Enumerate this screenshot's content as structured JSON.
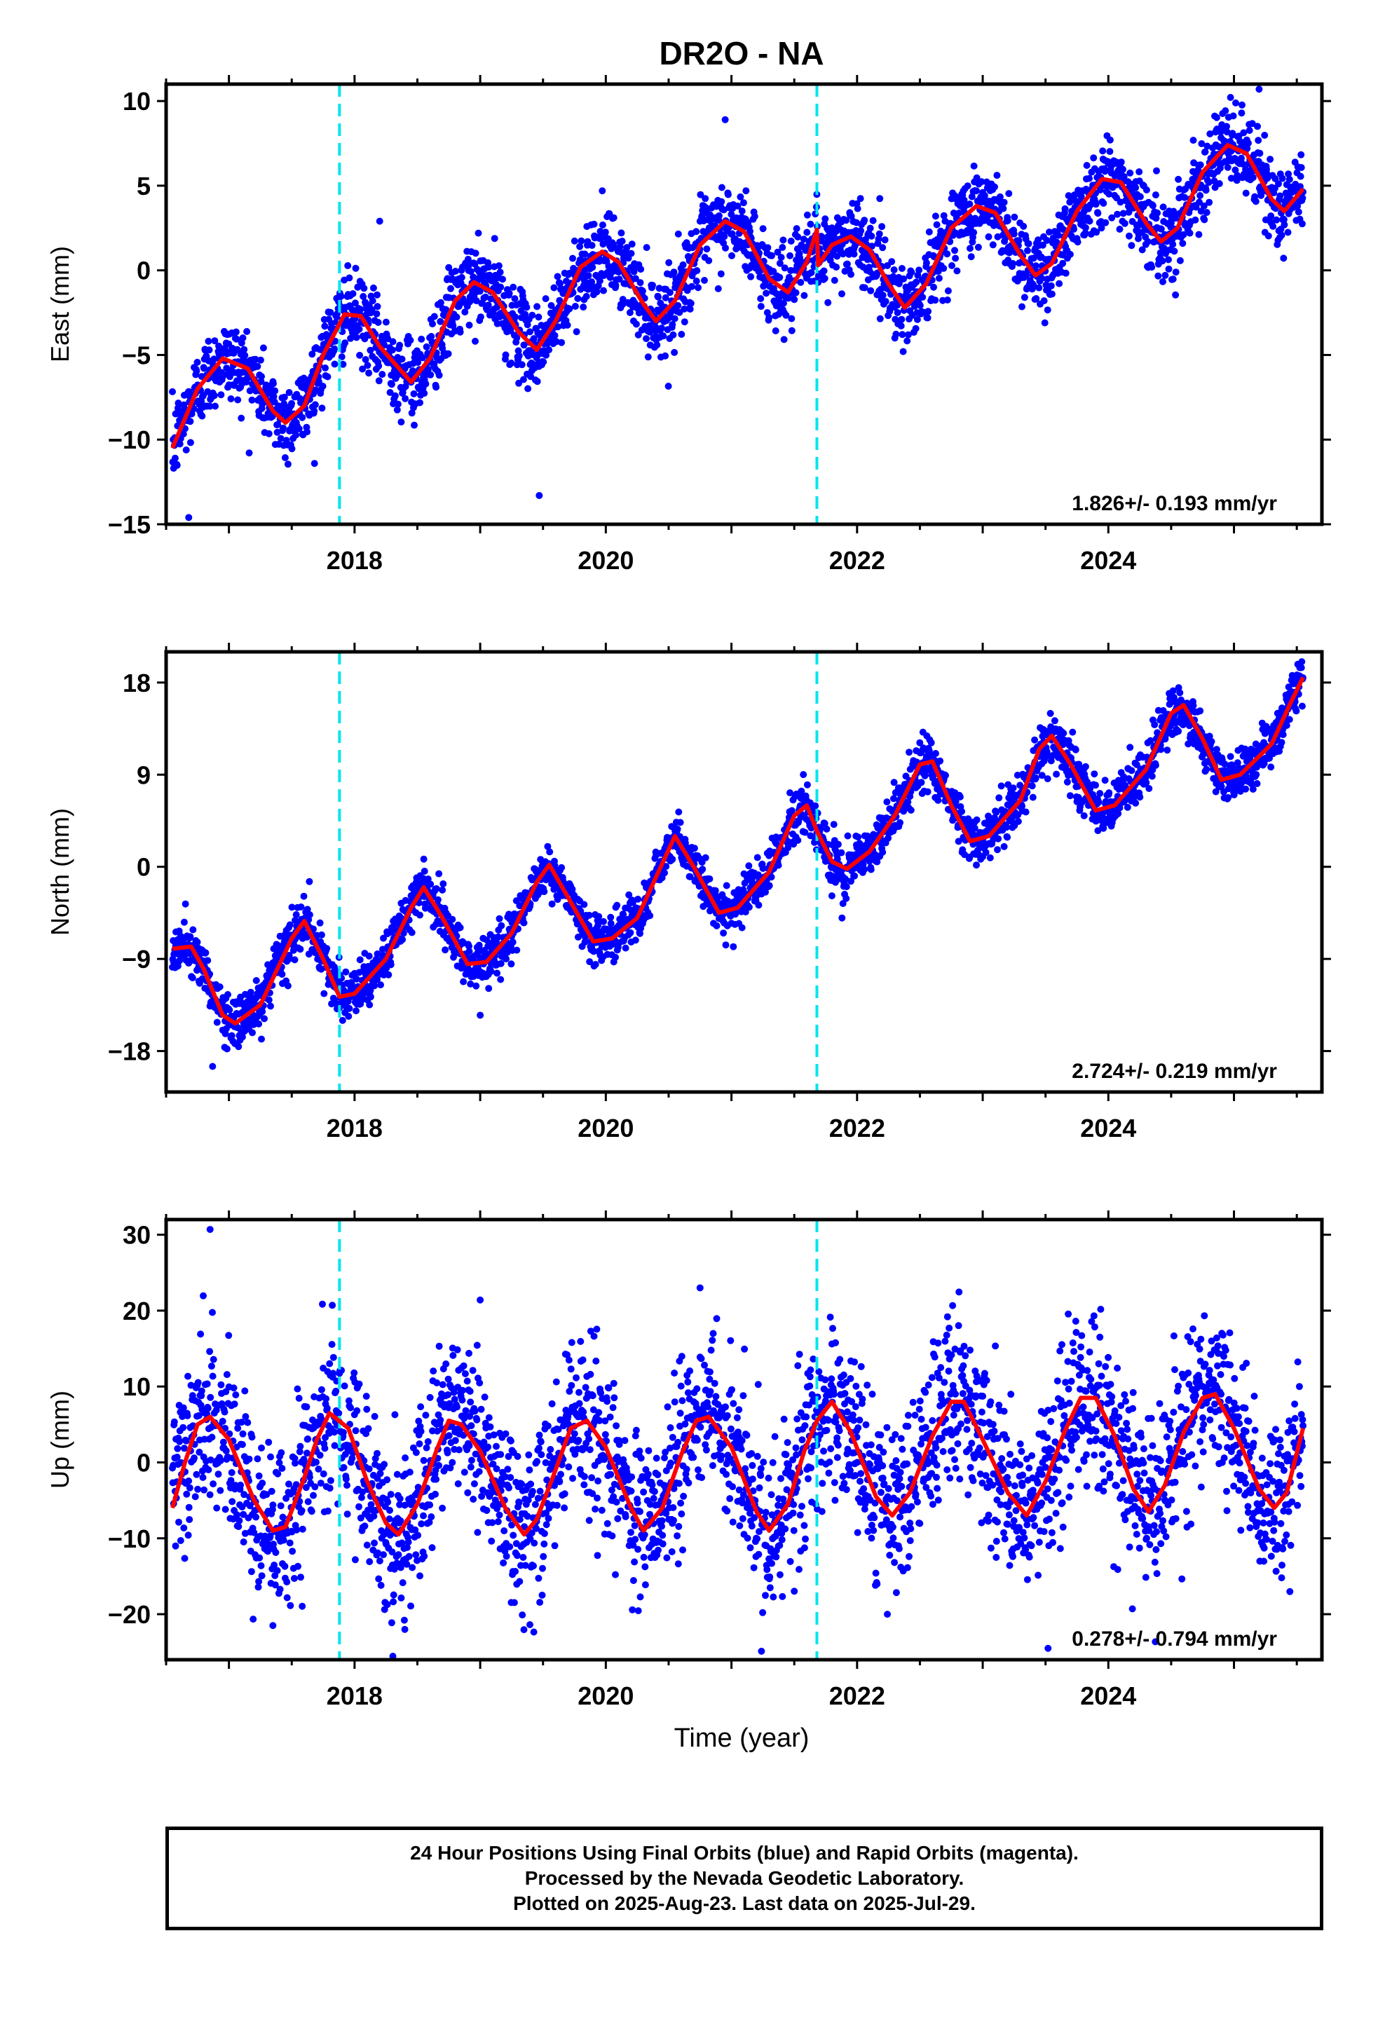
{
  "figure": {
    "title": "DR2O - NA",
    "xlabel": "Time (year)"
  },
  "caption": {
    "line1": "24 Hour Positions Using Final Orbits (blue) and Rapid Orbits (magenta).",
    "line2": "Processed by the Nevada Geodetic Laboratory.",
    "line3": "Plotted on 2025-Aug-23. Last data on 2025-Jul-29."
  },
  "colors": {
    "final_orbits": "#0000ff",
    "fit": "#ff0000",
    "events": "#00e5ee",
    "frame": "#000000"
  },
  "chart_data": [
    {
      "type": "scatter",
      "ylabel": "East (mm)",
      "xlim": [
        2016.5,
        2025.7
      ],
      "ylim": [
        -15,
        11
      ],
      "yticks": [
        10,
        5,
        0,
        -5,
        -10,
        -15
      ],
      "ytick_labels": [
        "10",
        "5",
        "0",
        "−5",
        "−10",
        "−15"
      ],
      "xticks": [
        2018,
        2020,
        2022,
        2024
      ],
      "xtick_labels": [
        "2018",
        "2020",
        "2022",
        "2024"
      ],
      "events": [
        2017.88,
        2021.68
      ],
      "rate_label": "1.826+/- 0.193 mm/yr",
      "fit_points": [
        [
          2016.55,
          -10.5
        ],
        [
          2016.75,
          -7.0
        ],
        [
          2016.95,
          -5.2
        ],
        [
          2017.15,
          -5.8
        ],
        [
          2017.35,
          -8.3
        ],
        [
          2017.45,
          -9.0
        ],
        [
          2017.6,
          -8.0
        ],
        [
          2017.75,
          -5.0
        ],
        [
          2017.92,
          -2.6
        ],
        [
          2018.05,
          -2.7
        ],
        [
          2018.2,
          -4.5
        ],
        [
          2018.45,
          -6.6
        ],
        [
          2018.6,
          -5.2
        ],
        [
          2018.8,
          -1.8
        ],
        [
          2018.95,
          -0.7
        ],
        [
          2019.1,
          -1.3
        ],
        [
          2019.3,
          -3.6
        ],
        [
          2019.45,
          -4.7
        ],
        [
          2019.6,
          -3.0
        ],
        [
          2019.8,
          0.2
        ],
        [
          2019.97,
          1.1
        ],
        [
          2020.1,
          0.5
        ],
        [
          2020.3,
          -2.0
        ],
        [
          2020.4,
          -3.0
        ],
        [
          2020.55,
          -1.8
        ],
        [
          2020.75,
          1.5
        ],
        [
          2020.95,
          2.9
        ],
        [
          2021.1,
          2.3
        ],
        [
          2021.3,
          -0.5
        ],
        [
          2021.45,
          -1.3
        ],
        [
          2021.6,
          0.5
        ],
        [
          2021.68,
          2.4
        ],
        [
          2021.69,
          0.3
        ],
        [
          2021.8,
          1.5
        ],
        [
          2021.95,
          2.0
        ],
        [
          2022.1,
          1.2
        ],
        [
          2022.25,
          -0.8
        ],
        [
          2022.38,
          -2.2
        ],
        [
          2022.55,
          -0.8
        ],
        [
          2022.75,
          2.5
        ],
        [
          2022.95,
          3.8
        ],
        [
          2023.1,
          3.4
        ],
        [
          2023.3,
          0.9
        ],
        [
          2023.42,
          -0.3
        ],
        [
          2023.55,
          0.4
        ],
        [
          2023.75,
          3.5
        ],
        [
          2023.95,
          5.4
        ],
        [
          2024.1,
          5.2
        ],
        [
          2024.3,
          2.8
        ],
        [
          2024.42,
          1.7
        ],
        [
          2024.55,
          2.5
        ],
        [
          2024.75,
          5.8
        ],
        [
          2024.95,
          7.4
        ],
        [
          2025.1,
          6.9
        ],
        [
          2025.3,
          4.2
        ],
        [
          2025.4,
          3.5
        ],
        [
          2025.55,
          4.8
        ]
      ],
      "scatter_spread": 1.2,
      "outliers": [
        [
          2016.68,
          -14.6
        ],
        [
          2019.47,
          -13.3
        ],
        [
          2020.95,
          8.9
        ],
        [
          2018.2,
          2.9
        ],
        [
          2025.2,
          10.7
        ]
      ]
    },
    {
      "type": "scatter",
      "ylabel": "North (mm)",
      "xlim": [
        2016.5,
        2025.7
      ],
      "ylim": [
        -22,
        21
      ],
      "yticks": [
        18,
        9,
        0,
        -9,
        -18
      ],
      "ytick_labels": [
        "18",
        "9",
        "0",
        "−9",
        "−18"
      ],
      "xticks": [
        2018,
        2020,
        2022,
        2024
      ],
      "xtick_labels": [
        "2018",
        "2020",
        "2022",
        "2024"
      ],
      "events": [
        2017.88,
        2021.68
      ],
      "rate_label": "2.724+/- 0.219 mm/yr",
      "fit_points": [
        [
          2016.55,
          -8.0
        ],
        [
          2016.7,
          -7.8
        ],
        [
          2016.8,
          -10.0
        ],
        [
          2016.95,
          -14.5
        ],
        [
          2017.05,
          -15.3
        ],
        [
          2017.25,
          -13.5
        ],
        [
          2017.5,
          -7.0
        ],
        [
          2017.6,
          -5.3
        ],
        [
          2017.75,
          -9.0
        ],
        [
          2017.88,
          -12.7
        ],
        [
          2018.0,
          -12.4
        ],
        [
          2018.25,
          -9.0
        ],
        [
          2018.45,
          -4.0
        ],
        [
          2018.55,
          -2.0
        ],
        [
          2018.7,
          -5.0
        ],
        [
          2018.9,
          -9.5
        ],
        [
          2019.05,
          -9.3
        ],
        [
          2019.25,
          -6.5
        ],
        [
          2019.45,
          -1.5
        ],
        [
          2019.55,
          0.2
        ],
        [
          2019.7,
          -3.0
        ],
        [
          2019.9,
          -7.3
        ],
        [
          2020.05,
          -7.0
        ],
        [
          2020.25,
          -5.0
        ],
        [
          2020.4,
          -1.0
        ],
        [
          2020.55,
          3.0
        ],
        [
          2020.7,
          0.0
        ],
        [
          2020.9,
          -4.5
        ],
        [
          2021.05,
          -4.0
        ],
        [
          2021.3,
          -0.5
        ],
        [
          2021.5,
          5.0
        ],
        [
          2021.6,
          6.0
        ],
        [
          2021.68,
          3.5
        ],
        [
          2021.8,
          0.5
        ],
        [
          2021.92,
          -0.2
        ],
        [
          2022.1,
          1.5
        ],
        [
          2022.3,
          5.0
        ],
        [
          2022.5,
          10.0
        ],
        [
          2022.6,
          10.3
        ],
        [
          2022.75,
          6.0
        ],
        [
          2022.9,
          2.5
        ],
        [
          2023.05,
          3.0
        ],
        [
          2023.3,
          6.5
        ],
        [
          2023.45,
          11.5
        ],
        [
          2023.55,
          12.8
        ],
        [
          2023.7,
          10.0
        ],
        [
          2023.9,
          5.5
        ],
        [
          2024.05,
          6.0
        ],
        [
          2024.3,
          9.5
        ],
        [
          2024.5,
          15.0
        ],
        [
          2024.6,
          15.8
        ],
        [
          2024.75,
          12.5
        ],
        [
          2024.9,
          8.5
        ],
        [
          2025.05,
          9.0
        ],
        [
          2025.3,
          12.0
        ],
        [
          2025.45,
          16.0
        ],
        [
          2025.55,
          18.5
        ]
      ],
      "scatter_spread": 1.2,
      "outliers": [
        [
          2016.87,
          -19.5
        ],
        [
          2019.0,
          -14.5
        ],
        [
          2021.88,
          -5.0
        ]
      ]
    },
    {
      "type": "scatter",
      "ylabel": "Up (mm)",
      "xlim": [
        2016.5,
        2025.7
      ],
      "ylim": [
        -26,
        32
      ],
      "yticks": [
        30,
        20,
        10,
        0,
        -10,
        -20
      ],
      "ytick_labels": [
        "30",
        "20",
        "10",
        "0",
        "−10",
        "−20"
      ],
      "xticks": [
        2018,
        2020,
        2022,
        2024
      ],
      "xtick_labels": [
        "2018",
        "2020",
        "2022",
        "2024"
      ],
      "events": [
        2017.88,
        2021.68
      ],
      "rate_label": "0.278+/- 0.794 mm/yr",
      "fit_points": [
        [
          2016.55,
          -6.0
        ],
        [
          2016.65,
          0.0
        ],
        [
          2016.75,
          5.0
        ],
        [
          2016.85,
          6.0
        ],
        [
          2017.0,
          3.0
        ],
        [
          2017.2,
          -5.0
        ],
        [
          2017.35,
          -9.0
        ],
        [
          2017.45,
          -8.5
        ],
        [
          2017.6,
          -2.0
        ],
        [
          2017.7,
          3.0
        ],
        [
          2017.8,
          6.5
        ],
        [
          2017.95,
          4.5
        ],
        [
          2018.1,
          -2.5
        ],
        [
          2018.25,
          -8.0
        ],
        [
          2018.35,
          -9.5
        ],
        [
          2018.5,
          -5.5
        ],
        [
          2018.65,
          1.5
        ],
        [
          2018.75,
          5.5
        ],
        [
          2018.85,
          5.0
        ],
        [
          2019.0,
          1.5
        ],
        [
          2019.2,
          -6.0
        ],
        [
          2019.35,
          -9.5
        ],
        [
          2019.45,
          -7.5
        ],
        [
          2019.6,
          -1.0
        ],
        [
          2019.72,
          4.5
        ],
        [
          2019.85,
          5.5
        ],
        [
          2020.0,
          2.0
        ],
        [
          2020.2,
          -6.0
        ],
        [
          2020.3,
          -9.0
        ],
        [
          2020.45,
          -6.0
        ],
        [
          2020.6,
          1.0
        ],
        [
          2020.72,
          5.5
        ],
        [
          2020.82,
          6.0
        ],
        [
          2021.0,
          2.0
        ],
        [
          2021.2,
          -6.5
        ],
        [
          2021.3,
          -9.0
        ],
        [
          2021.45,
          -5.5
        ],
        [
          2021.58,
          1.5
        ],
        [
          2021.68,
          5.5
        ],
        [
          2021.8,
          8.0
        ],
        [
          2021.95,
          4.0
        ],
        [
          2022.15,
          -4.5
        ],
        [
          2022.28,
          -7.0
        ],
        [
          2022.42,
          -4.0
        ],
        [
          2022.6,
          3.5
        ],
        [
          2022.75,
          8.0
        ],
        [
          2022.85,
          8.0
        ],
        [
          2023.0,
          3.0
        ],
        [
          2023.2,
          -4.0
        ],
        [
          2023.35,
          -7.0
        ],
        [
          2023.5,
          -2.5
        ],
        [
          2023.65,
          4.0
        ],
        [
          2023.78,
          8.5
        ],
        [
          2023.9,
          8.5
        ],
        [
          2024.05,
          3.5
        ],
        [
          2024.2,
          -3.5
        ],
        [
          2024.32,
          -6.5
        ],
        [
          2024.45,
          -3.0
        ],
        [
          2024.6,
          4.0
        ],
        [
          2024.75,
          8.5
        ],
        [
          2024.85,
          9.0
        ],
        [
          2025.0,
          4.5
        ],
        [
          2025.2,
          -3.5
        ],
        [
          2025.32,
          -6.0
        ],
        [
          2025.42,
          -4.0
        ],
        [
          2025.55,
          4.5
        ]
      ],
      "scatter_spread": 5.5,
      "outliers": [
        [
          2016.85,
          30.7
        ],
        [
          2019.0,
          21.4
        ],
        [
          2020.75,
          23.0
        ],
        [
          2023.52,
          -24.5
        ],
        [
          2018.4,
          -22.0
        ],
        [
          2017.35,
          -21.5
        ]
      ]
    }
  ]
}
